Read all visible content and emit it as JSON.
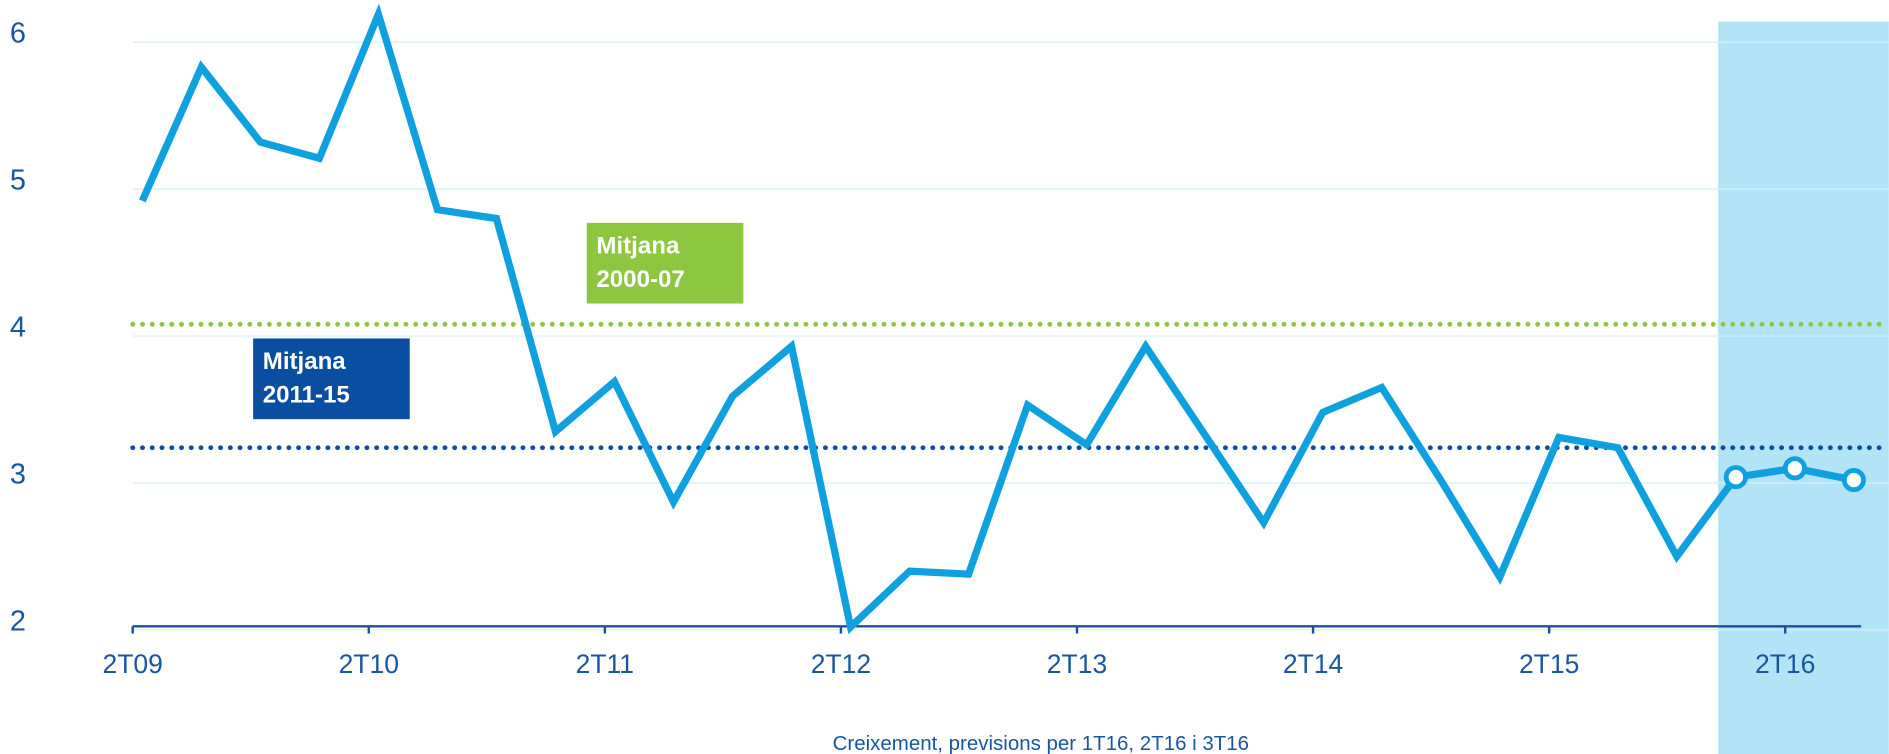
{
  "chart_data": {
    "type": "line",
    "categories": [
      "2T09",
      null,
      null,
      null,
      "2T10",
      null,
      null,
      null,
      "2T11",
      null,
      null,
      null,
      "2T12",
      null,
      null,
      null,
      "2T13",
      null,
      null,
      null,
      "2T14",
      null,
      null,
      null,
      "2T15",
      null,
      null,
      null,
      "2T16",
      null
    ],
    "values": [
      4.92,
      5.83,
      5.32,
      5.21,
      6.19,
      4.86,
      4.8,
      3.35,
      3.69,
      2.87,
      3.59,
      3.93,
      2.02,
      2.4,
      2.38,
      3.53,
      3.26,
      3.93,
      3.33,
      2.73,
      3.48,
      3.65,
      3.02,
      2.36,
      3.31,
      3.24,
      2.5,
      3.04,
      3.1,
      3.02
    ],
    "color": "#0fa0e0",
    "ylim": [
      2,
      6
    ],
    "yticks": [
      2,
      3,
      4,
      5,
      6
    ],
    "grid": true,
    "forecast_from": 27,
    "forecast_color": "#b3e3f6",
    "reference_lines": [
      {
        "value": 4.08,
        "label": [
          "Mitjana",
          "2000-07"
        ],
        "color": "#8dc63f"
      },
      {
        "value": 3.24,
        "label": [
          "Mitjana",
          "2011-15"
        ],
        "color": "#0a4ea2"
      }
    ],
    "note": "Creixement, previsions per 1T16, 2T16 i 3T16"
  }
}
